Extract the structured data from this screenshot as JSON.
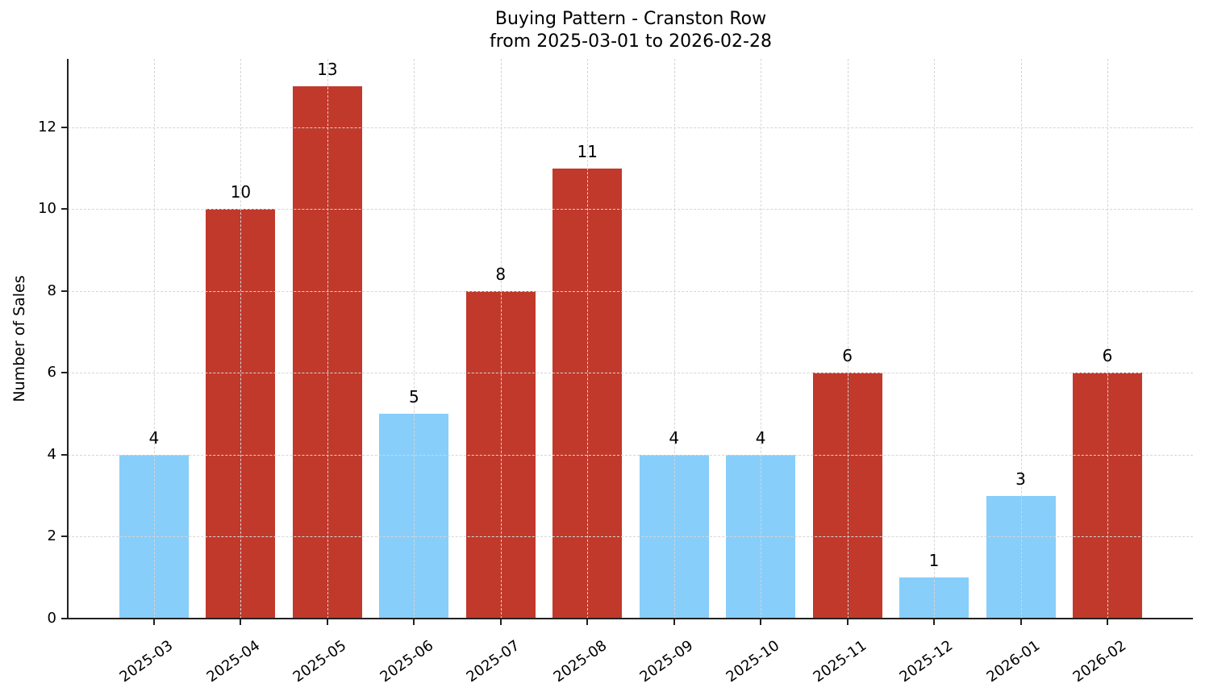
{
  "chart_data": {
    "type": "bar",
    "title": "Buying Pattern - Cranston Row",
    "subtitle": "from 2025-03-01 to 2026-02-28",
    "xlabel": "",
    "ylabel": "Number of Sales",
    "categories": [
      "2025-03",
      "2025-04",
      "2025-05",
      "2025-06",
      "2025-07",
      "2025-08",
      "2025-09",
      "2025-10",
      "2025-11",
      "2025-12",
      "2026-01",
      "2026-02"
    ],
    "values": [
      4,
      10,
      13,
      5,
      8,
      11,
      4,
      4,
      6,
      1,
      3,
      6
    ],
    "bar_colors": [
      "#87cefa",
      "#c0392b",
      "#c0392b",
      "#87cefa",
      "#c0392b",
      "#c0392b",
      "#87cefa",
      "#87cefa",
      "#c0392b",
      "#87cefa",
      "#87cefa",
      "#c0392b"
    ],
    "ylim": [
      0,
      13.67
    ],
    "yticks": [
      0,
      2,
      4,
      6,
      8,
      10,
      12
    ],
    "grid": true,
    "legend": null,
    "data_labels": true
  },
  "colors": {
    "high": "#c0392b",
    "low": "#87cefa",
    "axis": "#222222",
    "grid": "#d5d5d5"
  }
}
